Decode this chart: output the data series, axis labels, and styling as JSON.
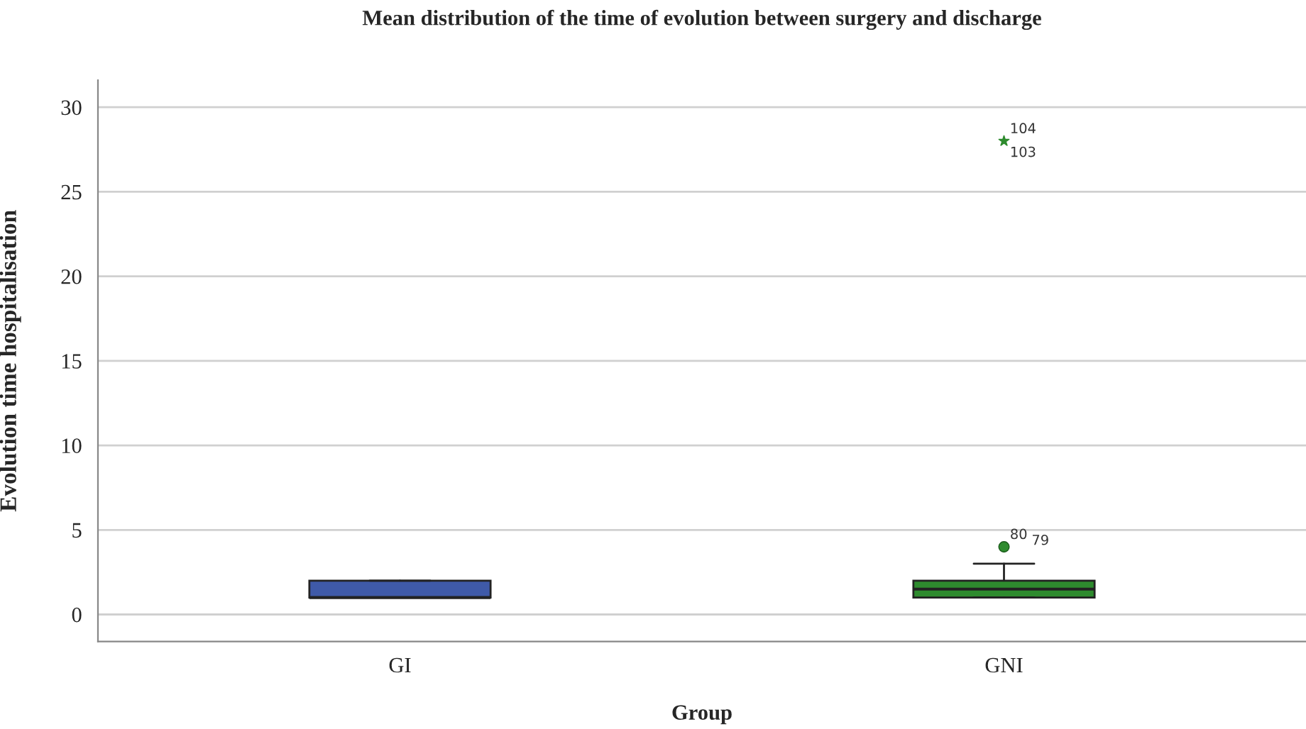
{
  "chart_data": {
    "type": "box",
    "title": "Mean distribution of the time of evolution between surgery and discharge",
    "xlabel": "Group",
    "ylabel": "Evolution time hospitalisation",
    "categories": [
      "GI",
      "GNI"
    ],
    "series": [
      {
        "color": "#3f5aa8",
        "boxes": [
          {
            "low": 1,
            "q1": 1,
            "median": 1,
            "q3": 2,
            "high": 2
          },
          null
        ]
      },
      {
        "color": "#2e8b2e",
        "boxes": [
          null,
          {
            "low": 1,
            "q1": 1,
            "median": 1.5,
            "q3": 2,
            "high": 3,
            "outliers": [
              4,
              28
            ]
          }
        ]
      }
    ],
    "ylim": [
      -1.6,
      31.6
    ],
    "yticks": [
      0,
      5,
      10,
      15,
      20,
      25,
      30
    ],
    "grid": "y",
    "annotations": [
      "80",
      "79",
      "104",
      "103"
    ]
  }
}
